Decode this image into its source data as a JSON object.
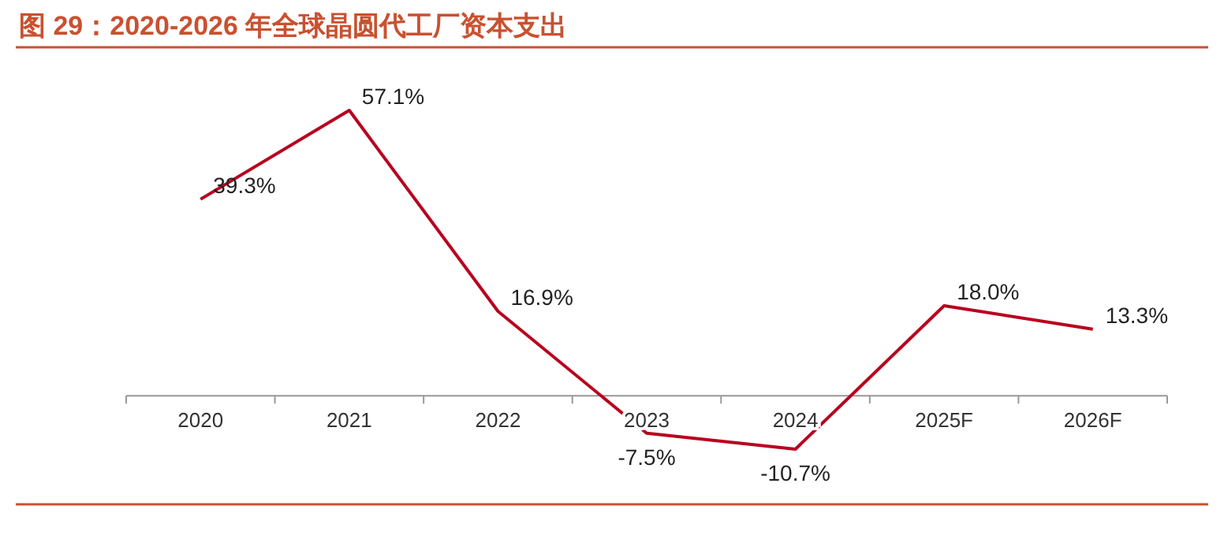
{
  "chart_data": {
    "type": "line",
    "title": "图 29：2020-2026 年全球晶圆代工厂资本支出",
    "categories": [
      "2020",
      "2021",
      "2022",
      "2023",
      "2024",
      "2025F",
      "2026F"
    ],
    "series": [
      {
        "color": "#b8001f",
        "values": [
          39.3,
          57.1,
          16.9,
          -7.5,
          -10.7,
          18.0,
          13.3
        ],
        "value_labels": [
          "39.3%",
          "57.1%",
          "16.9%",
          "-7.5%",
          "-10.7%",
          "18.0%",
          "13.3%"
        ]
      }
    ],
    "data_labels": true,
    "marker": "none",
    "line_style": "solid"
  }
}
